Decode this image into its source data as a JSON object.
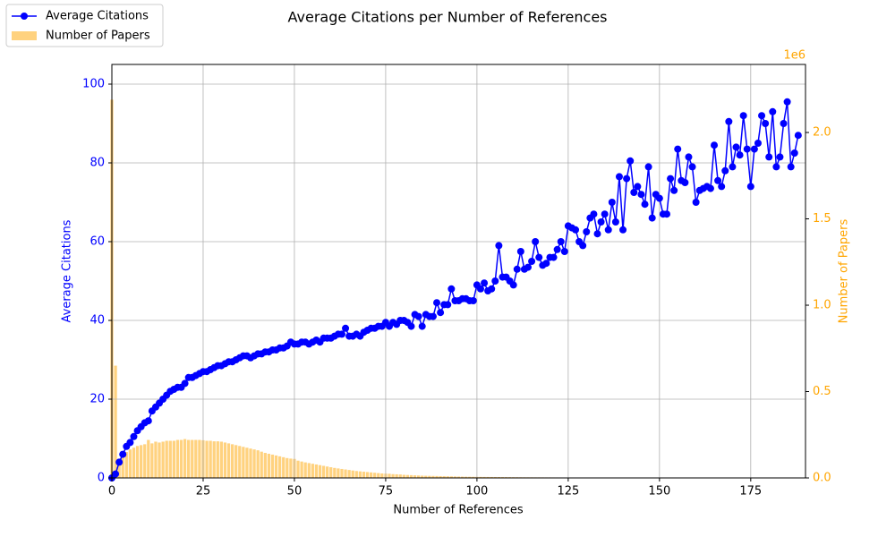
{
  "chart_data": {
    "type": "combo",
    "title": "Average Citations per Number of References",
    "x_label": "Number of References",
    "y_label": "Average Citations",
    "y2_label": "Number of Papers",
    "y2_offset_label": "1e6",
    "xlim": [
      0,
      190
    ],
    "xticks": [
      0,
      25,
      50,
      75,
      100,
      125,
      150,
      175
    ],
    "ylim": [
      0,
      105
    ],
    "yticks": [
      0,
      20,
      40,
      60,
      80,
      100
    ],
    "y2lim": [
      0,
      2394000
    ],
    "y2ticks": [
      {
        "value": 0,
        "label": "0.0"
      },
      {
        "value": 500000,
        "label": "0.5"
      },
      {
        "value": 1000000,
        "label": "1.0"
      },
      {
        "value": 1500000,
        "label": "1.5"
      },
      {
        "value": 2000000,
        "label": "2.0"
      }
    ],
    "grid": true,
    "legend": "upper left",
    "x": [
      0,
      1,
      2,
      3,
      4,
      5,
      6,
      7,
      8,
      9,
      10,
      11,
      12,
      13,
      14,
      15,
      16,
      17,
      18,
      19,
      20,
      21,
      22,
      23,
      24,
      25,
      26,
      27,
      28,
      29,
      30,
      31,
      32,
      33,
      34,
      35,
      36,
      37,
      38,
      39,
      40,
      41,
      42,
      43,
      44,
      45,
      46,
      47,
      48,
      49,
      50,
      51,
      52,
      53,
      54,
      55,
      56,
      57,
      58,
      59,
      60,
      61,
      62,
      63,
      64,
      65,
      66,
      67,
      68,
      69,
      70,
      71,
      72,
      73,
      74,
      75,
      76,
      77,
      78,
      79,
      80,
      81,
      82,
      83,
      84,
      85,
      86,
      87,
      88,
      89,
      90,
      91,
      92,
      93,
      94,
      95,
      96,
      97,
      98,
      99,
      100,
      101,
      102,
      103,
      104,
      105,
      106,
      107,
      108,
      109,
      110,
      111,
      112,
      113,
      114,
      115,
      116,
      117,
      118,
      119,
      120,
      121,
      122,
      123,
      124,
      125,
      126,
      127,
      128,
      129,
      130,
      131,
      132,
      133,
      134,
      135,
      136,
      137,
      138,
      139,
      140,
      141,
      142,
      143,
      144,
      145,
      146,
      147,
      148,
      149,
      150,
      151,
      152,
      153,
      154,
      155,
      156,
      157,
      158,
      159,
      160,
      161,
      162,
      163,
      164,
      165,
      166,
      167,
      168,
      169,
      170,
      171,
      172,
      173,
      174,
      175,
      176,
      177,
      178,
      179,
      180,
      181,
      182,
      183,
      184,
      185,
      186,
      187,
      188
    ],
    "series": [
      {
        "name": "Number of Papers",
        "type": "bar",
        "axis": "y2",
        "color": "#ffa500",
        "values": [
          2190000,
          650000,
          100000,
          130000,
          150000,
          165000,
          175000,
          185000,
          190000,
          195000,
          220000,
          200000,
          210000,
          205000,
          210000,
          215000,
          215000,
          215000,
          220000,
          220000,
          225000,
          220000,
          220000,
          220000,
          220000,
          218000,
          215000,
          215000,
          212000,
          212000,
          210000,
          205000,
          200000,
          195000,
          190000,
          185000,
          180000,
          175000,
          170000,
          165000,
          160000,
          152000,
          145000,
          140000,
          135000,
          130000,
          125000,
          120000,
          115000,
          112000,
          110000,
          100000,
          95000,
          90000,
          86000,
          82000,
          78000,
          74000,
          70000,
          66000,
          62000,
          58000,
          55000,
          52000,
          49000,
          46000,
          43000,
          40000,
          38000,
          36000,
          34000,
          32000,
          30000,
          28000,
          26000,
          25000,
          24000,
          22000,
          21000,
          20000,
          18000,
          17000,
          16000,
          15000,
          14000,
          13000,
          12500,
          12000,
          11500,
          11000,
          10500,
          10000,
          9500,
          9000,
          8500,
          8000,
          7500,
          7000,
          6800,
          6500,
          6200,
          6000,
          5800,
          5600,
          5400,
          5200,
          5000,
          4800,
          4600,
          4400,
          4200,
          4000,
          3800,
          3600,
          3500,
          3400,
          3300,
          3200,
          3100,
          3000,
          2900,
          2800,
          2700,
          2600,
          2500,
          2400,
          2300,
          2200,
          2100,
          2000,
          1950,
          1900,
          1850,
          1800,
          1750,
          1700,
          1650,
          1600,
          1550,
          1500,
          1450,
          1400,
          1350,
          1300,
          1250,
          1200,
          1150,
          1100,
          1050,
          1000,
          980,
          960,
          940,
          920,
          900,
          880,
          860,
          840,
          820,
          800,
          780,
          760,
          740,
          720,
          700,
          680,
          660,
          640,
          620,
          600,
          580,
          560,
          540,
          520,
          500,
          480,
          460,
          440,
          420,
          400,
          380,
          360,
          340,
          320,
          300,
          280,
          260,
          240,
          220
        ]
      },
      {
        "name": "Average Citations",
        "type": "line",
        "axis": "y",
        "color": "#0000ff",
        "values": [
          0,
          1,
          4,
          6,
          8,
          9,
          10.5,
          12,
          13,
          14,
          14.5,
          17,
          18,
          19,
          20,
          21,
          22,
          22.5,
          23,
          23,
          24,
          25.5,
          25.5,
          26,
          26.5,
          27,
          27,
          27.5,
          28,
          28.5,
          28.5,
          29,
          29.5,
          29.5,
          30,
          30.5,
          31,
          31,
          30.5,
          31,
          31.5,
          31.5,
          32,
          32,
          32.5,
          32.5,
          33,
          33,
          33.5,
          34.5,
          34,
          34,
          34.5,
          34.5,
          34,
          34.5,
          35,
          34.5,
          35.5,
          35.5,
          35.5,
          36,
          36.5,
          36.5,
          38,
          36,
          36,
          36.5,
          36,
          37,
          37.5,
          38,
          38,
          38.5,
          38.5,
          39.5,
          38.5,
          39.5,
          39,
          40,
          40,
          39.5,
          38.5,
          41.5,
          41,
          38.5,
          41.5,
          41,
          41,
          44.5,
          42,
          44,
          44,
          48,
          45,
          45,
          45.5,
          45.5,
          45,
          45,
          49,
          48,
          49.5,
          47.5,
          48,
          50,
          59,
          51,
          51,
          50,
          49,
          53,
          57.5,
          53,
          53.5,
          55,
          60,
          56,
          54,
          54.5,
          56,
          56,
          58,
          60,
          57.5,
          64,
          63.5,
          63,
          60,
          59,
          62.5,
          66,
          67,
          62,
          65,
          67,
          63,
          70,
          65,
          76.5,
          63,
          76,
          80.5,
          72.5,
          74,
          72,
          69.5,
          79,
          66,
          72,
          71,
          67,
          67,
          76,
          73,
          83.5,
          75.5,
          75,
          81.5,
          79,
          70,
          73,
          73.5,
          74,
          73.5,
          84.5,
          75.5,
          74,
          78,
          90.5,
          79,
          84,
          82,
          92,
          83.5,
          74,
          83.5,
          85,
          92,
          90,
          81.5,
          93,
          79,
          81.5,
          90,
          95.5,
          79,
          82.5,
          87
        ]
      }
    ]
  }
}
